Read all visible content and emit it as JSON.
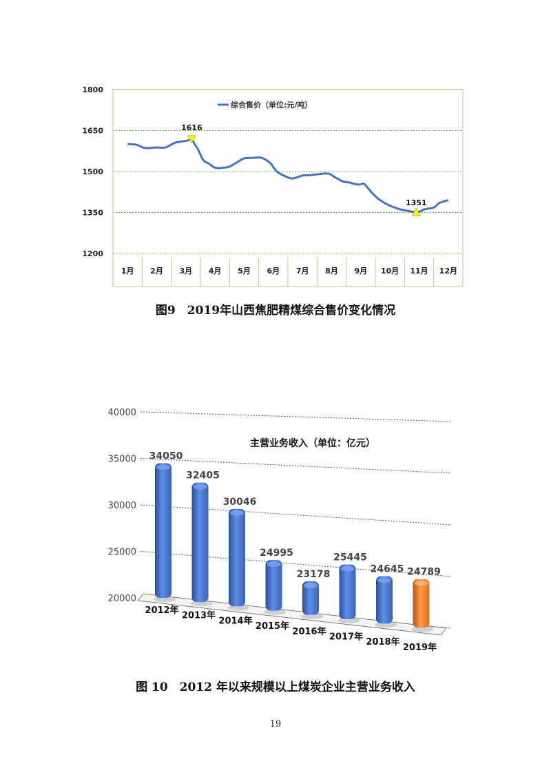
{
  "chart_data": [
    {
      "type": "line",
      "legend": "综合售价（单位:元/吨）",
      "legend_position": "top-center",
      "ylim": [
        1200,
        1800
      ],
      "yticks": [
        1200,
        1350,
        1500,
        1650,
        1800
      ],
      "grid": true,
      "months": [
        "1月",
        "2月",
        "3月",
        "4月",
        "5月",
        "6月",
        "7月",
        "8月",
        "9月",
        "10月",
        "11月",
        "12月"
      ],
      "series": [
        {
          "name": "综合售价（单位:元/吨）",
          "color": "#4472c4",
          "x": [
            0,
            0.3,
            0.6,
            1.0,
            1.3,
            1.6,
            1.85,
            2.0,
            2.2,
            2.3,
            2.4,
            2.6,
            2.8,
            3.0,
            3.2,
            3.5,
            3.7,
            4.0,
            4.3,
            4.6,
            4.9,
            5.1,
            5.3,
            5.6,
            5.8,
            6.0,
            6.3,
            6.6,
            6.9,
            7.1,
            7.4,
            7.6,
            7.9,
            8.1,
            8.2,
            8.4,
            8.6,
            8.8,
            9.0,
            9.3,
            9.6,
            9.9,
            10.0,
            10.2,
            10.5,
            10.7,
            11.0
          ],
          "values": [
            1600,
            1598,
            1586,
            1588,
            1588,
            1604,
            1610,
            1612,
            1616,
            1600,
            1585,
            1542,
            1528,
            1514,
            1513,
            1518,
            1530,
            1548,
            1550,
            1550,
            1530,
            1502,
            1488,
            1475,
            1478,
            1485,
            1487,
            1491,
            1492,
            1480,
            1463,
            1460,
            1452,
            1455,
            1445,
            1420,
            1400,
            1386,
            1375,
            1363,
            1356,
            1351,
            1352,
            1362,
            1368,
            1385,
            1395
          ]
        }
      ],
      "annotations": [
        {
          "label": "1616",
          "x": 2.2,
          "y": 1616,
          "color": "#ffff00"
        },
        {
          "label": "1351",
          "x": 9.9,
          "y": 1351,
          "color": "#ffff00"
        }
      ]
    },
    {
      "type": "bar",
      "title": "主营业务收入（单位：亿元）",
      "categories": [
        "2012年",
        "2013年",
        "2014年",
        "2015年",
        "2016年",
        "2017年",
        "2018年",
        "2019年"
      ],
      "values": [
        34050,
        32405,
        30046,
        24995,
        23178,
        25445,
        24645,
        24789
      ],
      "ylim": [
        20000,
        40000
      ],
      "yticks": [
        20000,
        25000,
        30000,
        35000,
        40000
      ],
      "grid": true,
      "bar_color": "#4472c4",
      "highlight_color": "#ed7d31",
      "highlight_index": 7
    }
  ],
  "captions": {
    "fig9": "图9　2019年山西焦肥精煤综合售价变化情况",
    "fig10": "图 10　2012 年以来规模以上煤炭企业主营业务收入"
  },
  "page_number": "19"
}
